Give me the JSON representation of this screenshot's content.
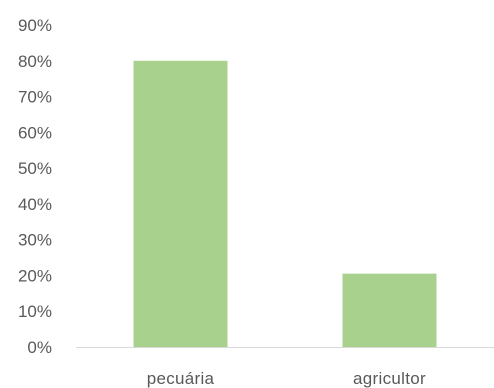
{
  "chart_data": {
    "type": "bar",
    "categories": [
      "pecuária",
      "agricultor"
    ],
    "values": [
      80,
      20.5
    ],
    "value_format": "percent",
    "ylim": [
      0,
      90
    ],
    "yticks": [
      0,
      10,
      20,
      30,
      40,
      50,
      60,
      70,
      80,
      90
    ],
    "ytick_labels": [
      "0%",
      "10%",
      "20%",
      "30%",
      "40%",
      "50%",
      "60%",
      "70%",
      "80%",
      "90%"
    ],
    "grid": false,
    "legend": "none",
    "colors": {
      "bar": "#a9d18e",
      "axis": "#d9d9d9",
      "text": "#595959"
    }
  }
}
